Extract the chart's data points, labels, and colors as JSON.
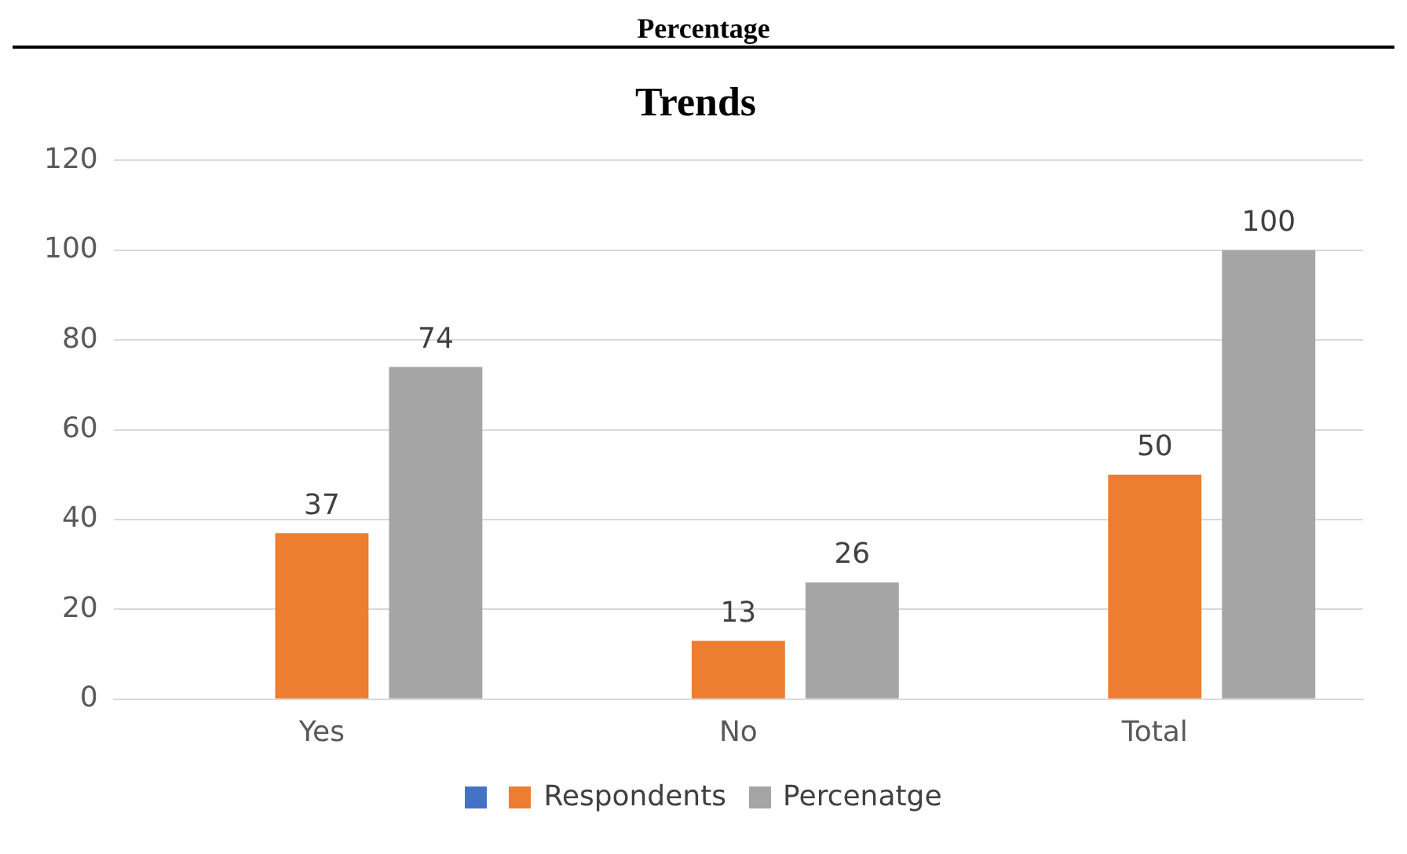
{
  "chart_data": {
    "type": "bar",
    "title": "Trends",
    "annotations": [
      "Percentage"
    ],
    "categories": [
      "Yes",
      "No",
      "Total"
    ],
    "series": [
      {
        "color": "#4472c4",
        "values": [
          null,
          null,
          null
        ]
      },
      {
        "name": "Respondents",
        "color": "#ed7d31",
        "values": [
          37,
          13,
          50
        ]
      },
      {
        "name": "Percenatge",
        "color": "#a5a5a5",
        "values": [
          74,
          26,
          100
        ]
      }
    ],
    "ylim": [
      0,
      120
    ],
    "yticks": [
      0,
      20,
      40,
      60,
      80,
      100,
      120
    ],
    "grid": "y",
    "legend": "bottom",
    "data_labels": true
  }
}
